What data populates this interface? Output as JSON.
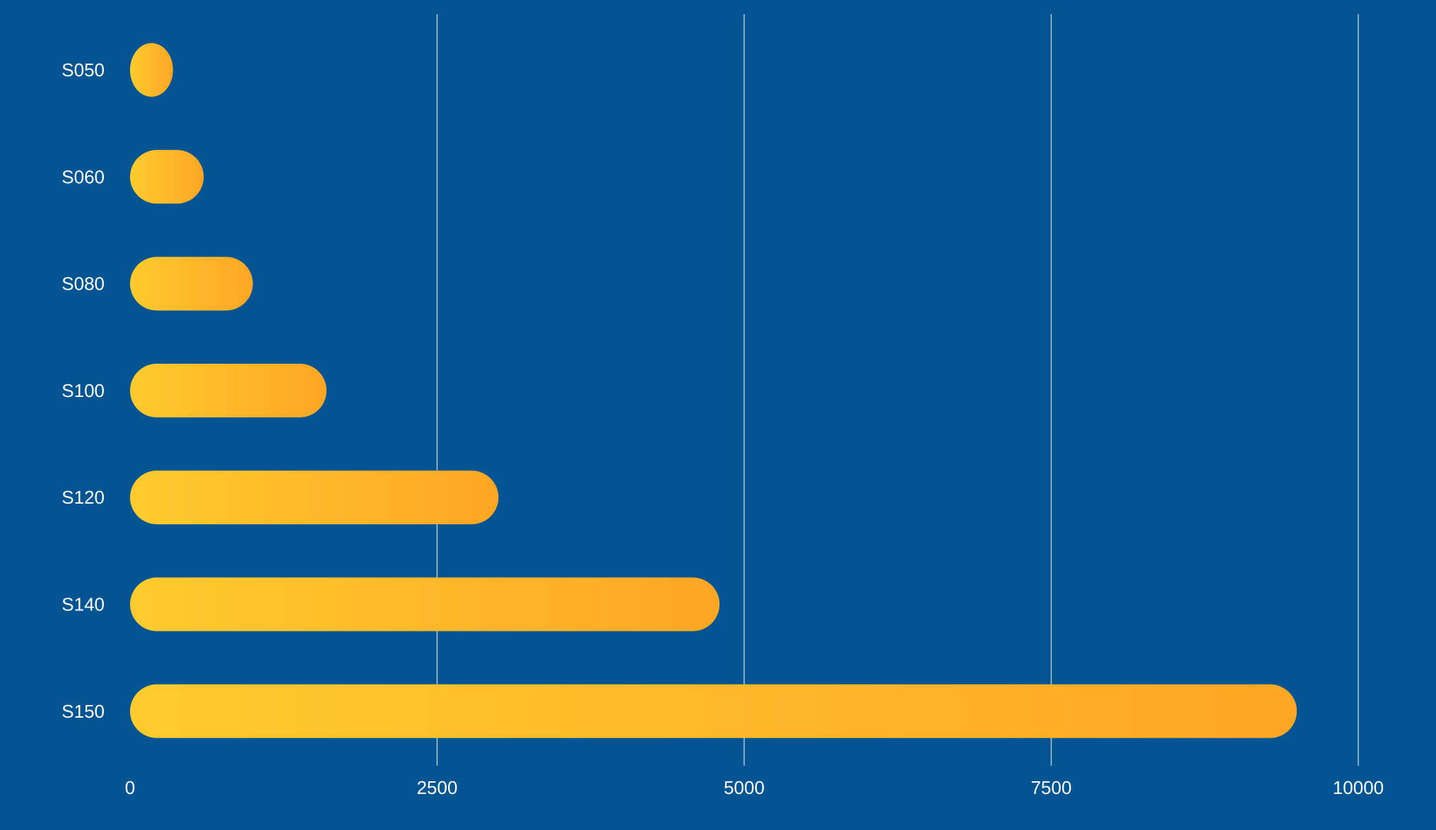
{
  "chart_data": {
    "type": "bar",
    "orientation": "horizontal",
    "categories": [
      "S050",
      "S060",
      "S080",
      "S100",
      "S120",
      "S140",
      "S150"
    ],
    "values": [
      350,
      600,
      1000,
      1600,
      3000,
      4800,
      9500
    ],
    "title": "",
    "xlabel": "",
    "ylabel": "",
    "xlim": [
      0,
      10000
    ],
    "xticks": [
      0,
      2500,
      5000,
      7500,
      10000
    ],
    "xtick_labels": [
      "0",
      "2500",
      "5000",
      "7500",
      "10000"
    ],
    "grid": "vertical",
    "legend": "none"
  },
  "colors": {
    "background": "#025592",
    "bar_start": "#FFCB2E",
    "bar_end": "#FFA624",
    "text": "#FFFFFF",
    "grid": "#C9D6E3"
  }
}
